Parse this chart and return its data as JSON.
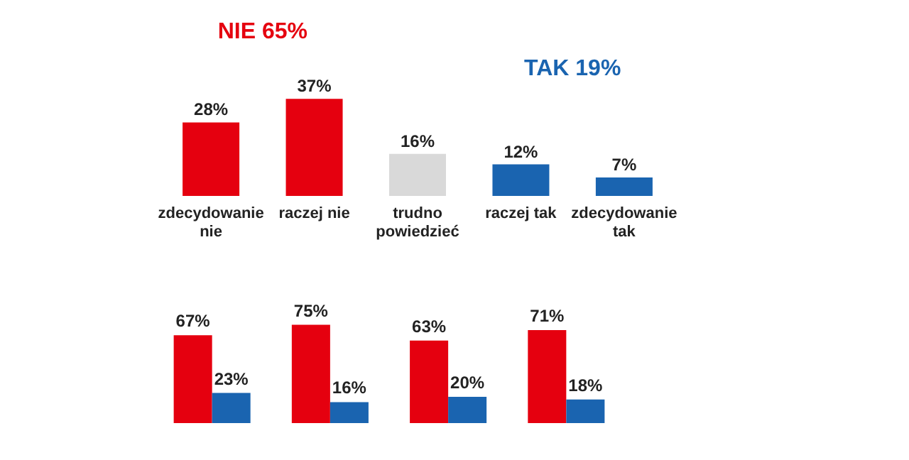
{
  "chart_data": [
    {
      "type": "bar",
      "categories": [
        "zdecydowanie nie",
        "raczej nie",
        "trudno powiedzieć",
        "raczej tak",
        "zdecydowanie tak"
      ],
      "values": [
        28,
        37,
        16,
        12,
        7
      ],
      "colors": [
        "#e5000f",
        "#e5000f",
        "#d9d9d9",
        "#1a64b0",
        "#1a64b0"
      ],
      "data_labels": true,
      "value_labels": [
        "28%",
        "37%",
        "16%",
        "12%",
        "7%"
      ],
      "annotations": [
        "NIE 65%",
        "TAK 19%"
      ]
    },
    {
      "type": "bar",
      "categories": [
        null,
        null,
        null,
        null
      ],
      "series": [
        {
          "color": "#e5000f",
          "values": [
            67,
            75,
            63,
            71
          ],
          "value_labels": [
            "67%",
            "75%",
            "63%",
            "71%"
          ]
        },
        {
          "color": "#1a64b0",
          "values": [
            23,
            16,
            20,
            18
          ],
          "value_labels": [
            "23%",
            "16%",
            "20%",
            "18%"
          ]
        }
      ],
      "data_labels": true
    }
  ]
}
